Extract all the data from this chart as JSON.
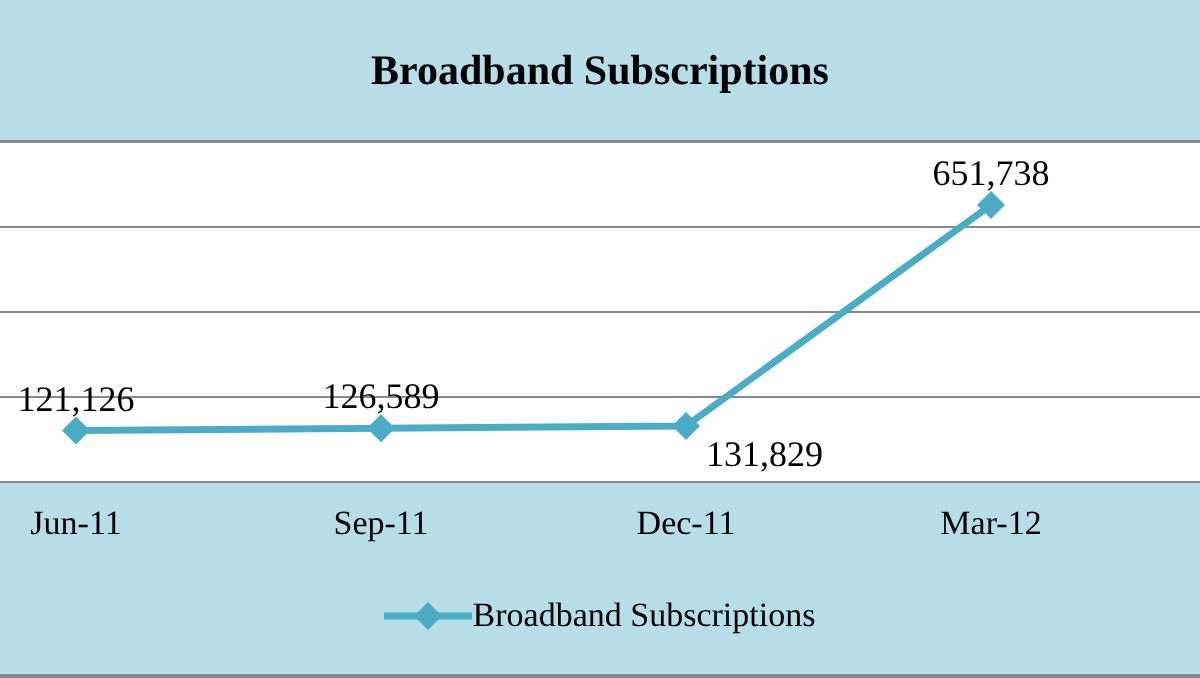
{
  "chart_data": {
    "type": "line",
    "title": "Broadband Subscriptions",
    "categories": [
      "Jun-11",
      "Sep-11",
      "Dec-11",
      "Mar-12",
      null
    ],
    "series": [
      {
        "name": "Broadband Subscriptions",
        "color": "#4bacc6",
        "values": [
          121126,
          126589,
          131829,
          651738,
          null
        ],
        "value_labels": [
          "121,126",
          "126,589",
          "131,829",
          "651,738",
          null
        ]
      }
    ],
    "tick_labels": "x",
    "grid": "y",
    "legend": "bottom",
    "marker": "diamond",
    "line_style": "solid"
  }
}
